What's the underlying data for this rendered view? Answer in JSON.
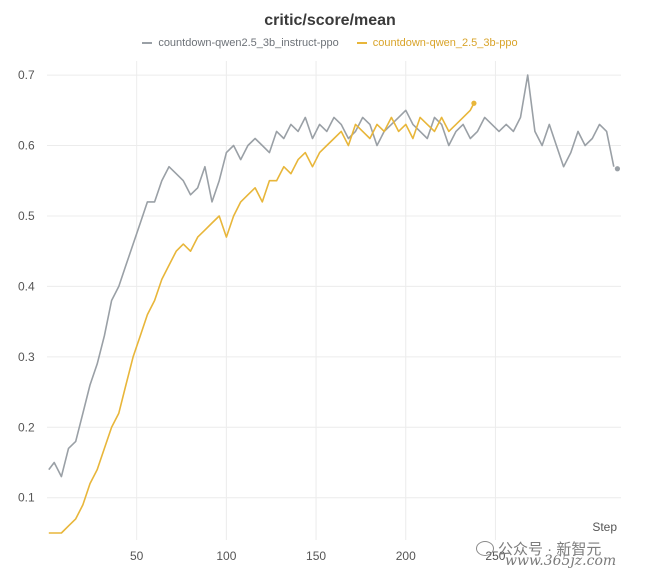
{
  "chart_data": {
    "type": "line",
    "title": "critic/score/mean",
    "xlabel": "Step",
    "ylabel": "",
    "xlim": [
      0,
      320
    ],
    "ylim": [
      0.04,
      0.72
    ],
    "x_ticks": [
      50,
      100,
      150,
      200,
      250
    ],
    "y_ticks": [
      0.1,
      0.2,
      0.3,
      0.4,
      0.5,
      0.6,
      0.7
    ],
    "grid": true,
    "legend_position": "top",
    "series": [
      {
        "name": "countdown-qwen2.5_3b_instruct-ppo",
        "color": "#9aa0a6",
        "x": [
          1,
          4,
          8,
          12,
          16,
          20,
          24,
          28,
          32,
          36,
          40,
          44,
          48,
          52,
          56,
          60,
          64,
          68,
          72,
          76,
          80,
          84,
          88,
          92,
          96,
          100,
          104,
          108,
          112,
          116,
          120,
          124,
          128,
          132,
          136,
          140,
          144,
          148,
          152,
          156,
          160,
          164,
          168,
          172,
          176,
          180,
          184,
          188,
          192,
          196,
          200,
          204,
          208,
          212,
          216,
          220,
          224,
          228,
          232,
          236,
          240,
          244,
          248,
          252,
          256,
          260,
          264,
          268,
          272,
          276,
          280,
          284,
          288,
          292,
          296,
          300,
          304,
          308,
          312,
          316
        ],
        "y": [
          0.14,
          0.15,
          0.13,
          0.17,
          0.18,
          0.22,
          0.26,
          0.29,
          0.33,
          0.38,
          0.4,
          0.43,
          0.46,
          0.49,
          0.52,
          0.52,
          0.55,
          0.57,
          0.56,
          0.55,
          0.53,
          0.54,
          0.57,
          0.52,
          0.55,
          0.59,
          0.6,
          0.58,
          0.6,
          0.61,
          0.6,
          0.59,
          0.62,
          0.61,
          0.63,
          0.62,
          0.64,
          0.61,
          0.63,
          0.62,
          0.64,
          0.63,
          0.61,
          0.62,
          0.64,
          0.63,
          0.6,
          0.62,
          0.63,
          0.64,
          0.65,
          0.63,
          0.62,
          0.61,
          0.64,
          0.63,
          0.6,
          0.62,
          0.63,
          0.61,
          0.62,
          0.64,
          0.63,
          0.62,
          0.63,
          0.62,
          0.64,
          0.7,
          0.62,
          0.6,
          0.63,
          0.6,
          0.57,
          0.59,
          0.62,
          0.6,
          0.61,
          0.63,
          0.62,
          0.57
        ],
        "endpoint": [
          318,
          0.567
        ]
      },
      {
        "name": "countdown-qwen_2.5_3b-ppo",
        "color": "#e8b63a",
        "x": [
          1,
          4,
          8,
          12,
          16,
          20,
          24,
          28,
          32,
          36,
          40,
          44,
          48,
          52,
          56,
          60,
          64,
          68,
          72,
          76,
          80,
          84,
          88,
          92,
          96,
          100,
          104,
          108,
          112,
          116,
          120,
          124,
          128,
          132,
          136,
          140,
          144,
          148,
          152,
          156,
          160,
          164,
          168,
          172,
          176,
          180,
          184,
          188,
          192,
          196,
          200,
          204,
          208,
          212,
          216,
          220,
          224,
          228,
          232,
          236,
          238
        ],
        "y": [
          0.05,
          0.05,
          0.05,
          0.06,
          0.07,
          0.09,
          0.12,
          0.14,
          0.17,
          0.2,
          0.22,
          0.26,
          0.3,
          0.33,
          0.36,
          0.38,
          0.41,
          0.43,
          0.45,
          0.46,
          0.45,
          0.47,
          0.48,
          0.49,
          0.5,
          0.47,
          0.5,
          0.52,
          0.53,
          0.54,
          0.52,
          0.55,
          0.55,
          0.57,
          0.56,
          0.58,
          0.59,
          0.57,
          0.59,
          0.6,
          0.61,
          0.62,
          0.6,
          0.63,
          0.62,
          0.61,
          0.63,
          0.62,
          0.64,
          0.62,
          0.63,
          0.61,
          0.64,
          0.63,
          0.62,
          0.64,
          0.62,
          0.63,
          0.64,
          0.65,
          0.66
        ],
        "endpoint": [
          238,
          0.66
        ]
      }
    ]
  },
  "watermark": {
    "line1": "公众号 · 新智元",
    "line2": "www.365jz.com",
    "icon": "wechat-icon"
  }
}
